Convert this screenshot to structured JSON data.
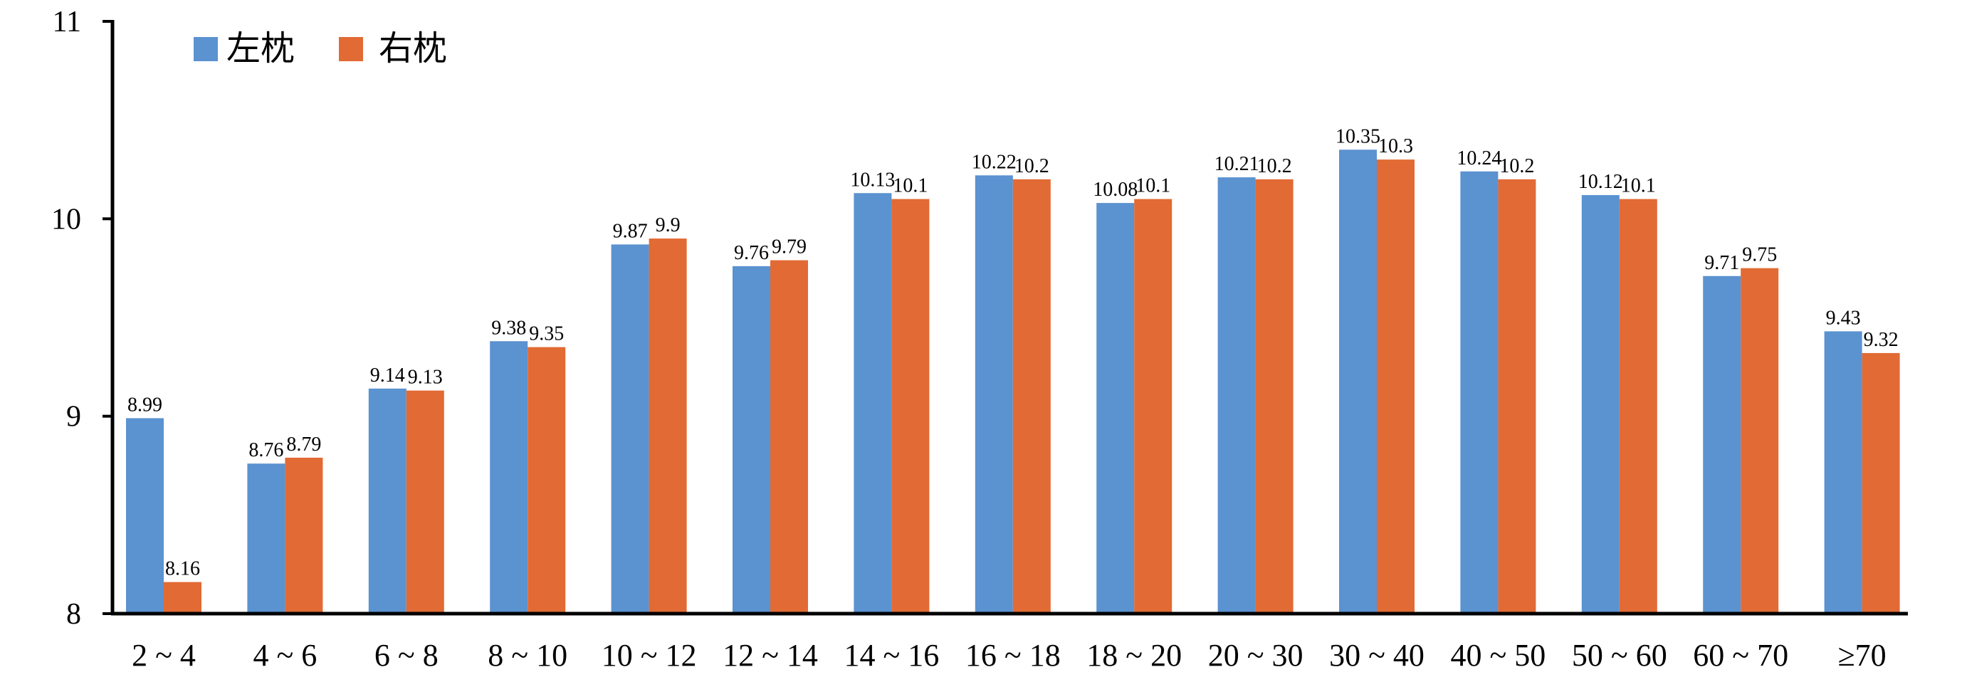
{
  "chart_data": {
    "type": "bar",
    "categories": [
      "2 ~ 4",
      "4 ~ 6",
      "6 ~ 8",
      "8 ~ 10",
      "10 ~ 12",
      "12 ~ 14",
      "14 ~ 16",
      "16 ~ 18",
      "18 ~ 20",
      "20 ~ 30",
      "30 ~ 40",
      "40 ~ 50",
      "50 ~ 60",
      "60 ~ 70",
      "≥70"
    ],
    "series": [
      {
        "name": "左枕",
        "color": "#5b92d0",
        "values": [
          8.99,
          8.76,
          9.14,
          9.38,
          9.87,
          9.76,
          10.13,
          10.22,
          10.08,
          10.21,
          10.35,
          10.24,
          10.12,
          9.71,
          9.43
        ],
        "labels": [
          "8.99",
          "8.76",
          "9.14",
          "9.38",
          "9.87",
          "9.76",
          "10.13",
          "10.22",
          "10.08",
          "10.21",
          "10.35",
          "10.24",
          "10.12",
          "9.71",
          "9.43"
        ]
      },
      {
        "name": "右枕",
        "color": "#e26a34",
        "values": [
          8.16,
          8.79,
          9.13,
          9.35,
          9.9,
          9.79,
          10.1,
          10.2,
          10.1,
          10.2,
          10.3,
          10.2,
          10.1,
          9.75,
          9.32
        ],
        "labels": [
          "8.16",
          "8.79",
          "9.13",
          "9.35",
          "9.9",
          "9.79",
          "10.1",
          "10.2",
          "10.1",
          "10.2",
          "10.3",
          "10.2",
          "10.1",
          "9.75",
          "9.32"
        ]
      }
    ],
    "ylim": [
      8,
      11
    ],
    "yticks": [
      "8",
      "9",
      "10",
      "11"
    ],
    "title": "",
    "xlabel": "",
    "ylabel": "",
    "grid": false,
    "legend": "top-left"
  }
}
